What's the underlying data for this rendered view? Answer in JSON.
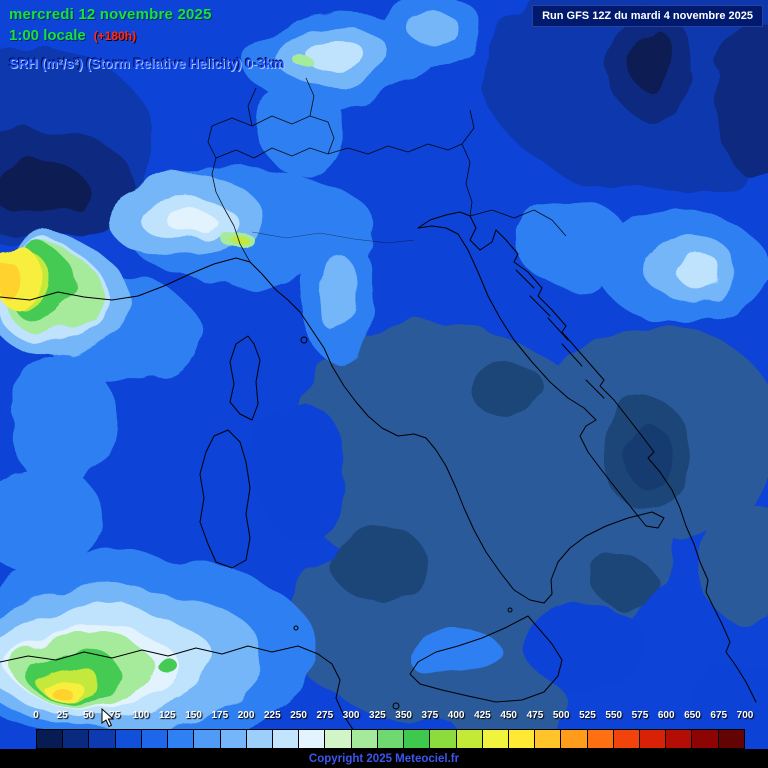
{
  "header": {
    "date": "mercredi 12 novembre 2025",
    "time": "1:00 locale",
    "offset": "(+180h)",
    "variable": "SRH (m²/s²) (Storm Relative Helicity) 0-3km",
    "run": "Run GFS 12Z du mardi 4 novembre 2025"
  },
  "legend": {
    "title": "SRH (m²/s²)",
    "values": [
      "0",
      "25",
      "50",
      "75",
      "100",
      "125",
      "150",
      "175",
      "200",
      "225",
      "250",
      "275",
      "300",
      "325",
      "350",
      "375",
      "400",
      "425",
      "450",
      "475",
      "500",
      "525",
      "550",
      "575",
      "600",
      "650",
      "675",
      "700"
    ],
    "colors": [
      "#071c52",
      "#0a2a80",
      "#0d3ab0",
      "#1150d8",
      "#1e66ea",
      "#2f80f2",
      "#4f9bf6",
      "#74b6f9",
      "#9cd0fb",
      "#c2e4fd",
      "#e4f4fe",
      "#d2f5c8",
      "#a4ea9a",
      "#6fd96f",
      "#3fc84e",
      "#8ddc3e",
      "#c4ea38",
      "#f0f43c",
      "#ffe934",
      "#ffc42a",
      "#ff9c1c",
      "#ff7012",
      "#f2430c",
      "#d92108",
      "#b30d05",
      "#8c0504",
      "#640303"
    ]
  },
  "map_colors": {
    "base": "#0d43d6",
    "muted_low": "#2b5a9a",
    "dark_navy": "#0a2a80",
    "coastline": "#000000"
  },
  "footer": {
    "copyright": "Copyright 2025 Meteociel.fr"
  }
}
